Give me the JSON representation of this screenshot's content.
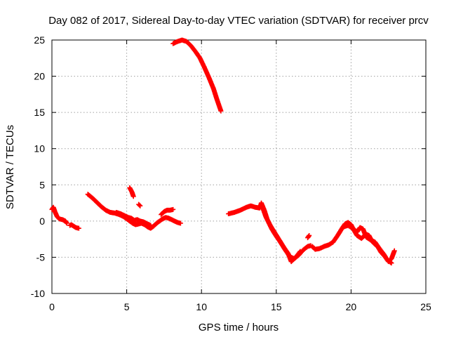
{
  "chart_data": {
    "type": "scatter",
    "title": "Day 082 of 2017, Sidereal Day-to-day VTEC variation (SDTVAR) for receiver prcv",
    "xlabel": "GPS time / hours",
    "ylabel": "SDTVAR / TECUs",
    "xlim": [
      0,
      25
    ],
    "ylim": [
      -10,
      25
    ],
    "xticks": [
      0,
      5,
      10,
      15,
      20,
      25
    ],
    "yticks": [
      -10,
      -5,
      0,
      5,
      10,
      15,
      20,
      25
    ],
    "grid": true,
    "marker": "+",
    "series": [
      {
        "name": "SDTVAR",
        "color": "#ff0000",
        "segments": [
          [
            [
              0.0,
              1.6
            ],
            [
              0.1,
              1.9
            ],
            [
              0.2,
              1.3
            ],
            [
              0.35,
              0.6
            ],
            [
              0.5,
              0.3
            ],
            [
              0.7,
              0.2
            ],
            [
              0.9,
              0.0
            ],
            [
              1.0,
              -0.3
            ]
          ],
          [
            [
              1.2,
              -0.6
            ],
            [
              1.3,
              -0.5
            ],
            [
              1.45,
              -0.7
            ],
            [
              1.6,
              -0.9
            ],
            [
              1.8,
              -1.0
            ]
          ],
          [
            [
              2.4,
              3.7
            ],
            [
              2.7,
              3.2
            ],
            [
              3.0,
              2.6
            ],
            [
              3.3,
              2.0
            ],
            [
              3.6,
              1.5
            ],
            [
              3.9,
              1.2
            ],
            [
              4.2,
              1.1
            ],
            [
              4.5,
              0.9
            ],
            [
              4.8,
              0.6
            ],
            [
              5.0,
              0.3
            ],
            [
              5.2,
              0.0
            ],
            [
              5.4,
              -0.3
            ],
            [
              5.6,
              -0.5
            ],
            [
              5.8,
              -0.4
            ],
            [
              6.0,
              -0.3
            ],
            [
              6.2,
              -0.5
            ],
            [
              6.4,
              -0.8
            ],
            [
              6.6,
              -1.0
            ],
            [
              6.8,
              -0.7
            ],
            [
              7.0,
              -0.3
            ],
            [
              7.2,
              0.0
            ],
            [
              7.4,
              0.3
            ],
            [
              7.6,
              0.5
            ],
            [
              7.8,
              0.4
            ],
            [
              8.0,
              0.2
            ],
            [
              8.2,
              0.0
            ],
            [
              8.4,
              -0.2
            ],
            [
              8.6,
              -0.3
            ]
          ],
          [
            [
              4.3,
              1.2
            ],
            [
              4.6,
              1.0
            ],
            [
              4.9,
              0.7
            ],
            [
              5.1,
              0.5
            ],
            [
              5.3,
              0.4
            ],
            [
              5.5,
              0.1
            ],
            [
              5.7,
              0.2
            ],
            [
              5.9,
              0.0
            ],
            [
              6.1,
              -0.1
            ],
            [
              6.3,
              -0.3
            ],
            [
              6.6,
              -0.6
            ]
          ],
          [
            [
              7.3,
              0.9
            ],
            [
              7.5,
              1.3
            ],
            [
              7.7,
              1.5
            ],
            [
              7.9,
              1.5
            ],
            [
              8.1,
              1.6
            ]
          ],
          [
            [
              5.2,
              4.6
            ],
            [
              5.35,
              4.0
            ],
            [
              5.45,
              3.4
            ]
          ],
          [
            [
              5.8,
              2.3
            ],
            [
              5.9,
              2.1
            ]
          ],
          [
            [
              8.1,
              24.5
            ],
            [
              8.4,
              24.8
            ],
            [
              8.7,
              25.0
            ],
            [
              9.0,
              24.8
            ],
            [
              9.3,
              24.2
            ],
            [
              9.6,
              23.4
            ],
            [
              9.9,
              22.5
            ],
            [
              10.2,
              21.2
            ],
            [
              10.5,
              19.8
            ],
            [
              10.8,
              18.3
            ],
            [
              11.0,
              17.0
            ],
            [
              11.2,
              15.8
            ],
            [
              11.3,
              15.2
            ]
          ],
          [
            [
              11.8,
              1.0
            ],
            [
              12.2,
              1.2
            ],
            [
              12.6,
              1.5
            ],
            [
              13.0,
              1.9
            ],
            [
              13.3,
              2.1
            ],
            [
              13.6,
              1.9
            ],
            [
              13.9,
              1.8
            ],
            [
              14.0,
              2.5
            ],
            [
              14.2,
              1.5
            ],
            [
              14.4,
              0.2
            ],
            [
              14.7,
              -1.1
            ],
            [
              15.0,
              -2.1
            ],
            [
              15.3,
              -3.0
            ],
            [
              15.6,
              -4.0
            ],
            [
              15.9,
              -4.9
            ],
            [
              16.2,
              -5.2
            ],
            [
              16.5,
              -4.7
            ],
            [
              16.8,
              -4.0
            ],
            [
              17.1,
              -3.5
            ],
            [
              17.3,
              -3.4
            ]
          ],
          [
            [
              14.1,
              1.8
            ],
            [
              14.3,
              0.6
            ],
            [
              14.6,
              -0.6
            ],
            [
              14.9,
              -1.6
            ],
            [
              15.2,
              -2.6
            ],
            [
              15.5,
              -3.6
            ],
            [
              15.8,
              -4.5
            ],
            [
              16.0,
              -5.6
            ],
            [
              16.3,
              -5.0
            ],
            [
              16.6,
              -4.2
            ]
          ],
          [
            [
              17.1,
              -2.3
            ],
            [
              17.2,
              -2.0
            ]
          ],
          [
            [
              17.4,
              -3.5
            ],
            [
              17.6,
              -3.9
            ],
            [
              17.9,
              -3.8
            ],
            [
              18.2,
              -3.5
            ],
            [
              18.5,
              -3.3
            ],
            [
              18.8,
              -2.9
            ],
            [
              19.1,
              -2.0
            ],
            [
              19.4,
              -1.0
            ],
            [
              19.6,
              -0.4
            ],
            [
              19.8,
              -0.2
            ],
            [
              20.0,
              -0.5
            ],
            [
              20.2,
              -1.3
            ],
            [
              20.4,
              -2.0
            ],
            [
              20.7,
              -2.4
            ],
            [
              21.0,
              -1.8
            ],
            [
              21.2,
              -2.0
            ],
            [
              21.4,
              -2.8
            ],
            [
              21.6,
              -3.2
            ],
            [
              21.8,
              -3.6
            ],
            [
              22.0,
              -4.3
            ],
            [
              22.3,
              -5.0
            ],
            [
              22.5,
              -5.6
            ],
            [
              22.7,
              -5.2
            ],
            [
              22.9,
              -4.1
            ]
          ],
          [
            [
              19.5,
              -0.8
            ],
            [
              19.8,
              -0.6
            ],
            [
              20.1,
              -1.0
            ],
            [
              20.4,
              -1.5
            ],
            [
              20.6,
              -0.9
            ],
            [
              20.8,
              -1.1
            ],
            [
              21.0,
              -2.2
            ],
            [
              21.3,
              -2.6
            ],
            [
              21.6,
              -2.9
            ],
            [
              21.9,
              -3.8
            ],
            [
              22.2,
              -4.6
            ],
            [
              22.4,
              -5.3
            ],
            [
              22.7,
              -5.8
            ]
          ]
        ]
      }
    ]
  }
}
